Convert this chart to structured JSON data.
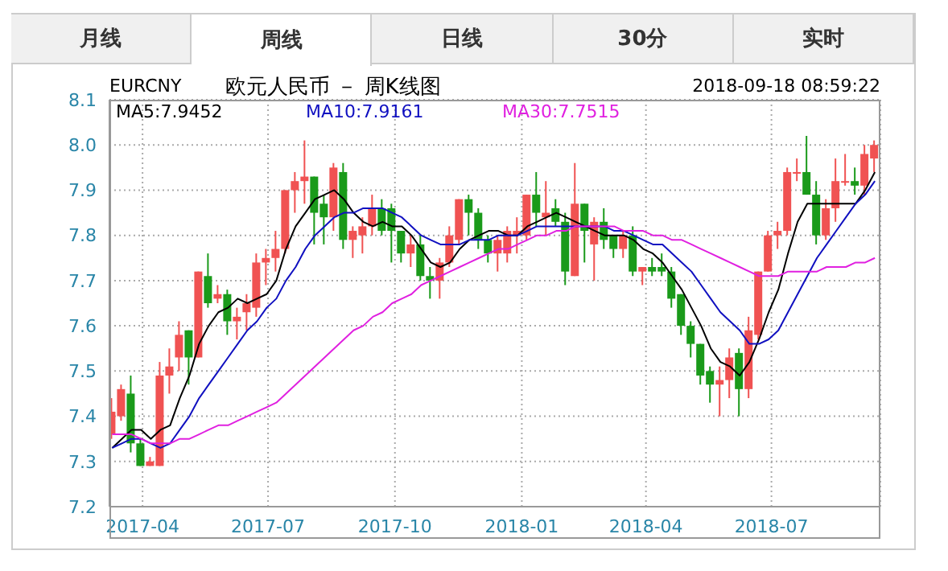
{
  "chart_data": {
    "type": "candlestick",
    "title": "欧元人民币 － 周K线图",
    "annotations": [
      "月线",
      "周线",
      "日线",
      "30分",
      "实时",
      "EURCNY",
      "2018-09-18 08:59:22"
    ],
    "x": [
      "2017-03-10",
      "2017-03-17",
      "2017-03-24",
      "2017-03-31",
      "2017-04-07",
      "2017-04-14",
      "2017-04-21",
      "2017-04-28",
      "2017-05-05",
      "2017-05-12",
      "2017-05-19",
      "2017-05-26",
      "2017-06-02",
      "2017-06-09",
      "2017-06-16",
      "2017-06-23",
      "2017-06-30",
      "2017-07-07",
      "2017-07-14",
      "2017-07-21",
      "2017-07-28",
      "2017-08-04",
      "2017-08-11",
      "2017-08-18",
      "2017-08-25",
      "2017-09-01",
      "2017-09-08",
      "2017-09-15",
      "2017-09-22",
      "2017-09-29",
      "2017-10-06",
      "2017-10-13",
      "2017-10-20",
      "2017-10-27",
      "2017-11-03",
      "2017-11-10",
      "2017-11-17",
      "2017-11-24",
      "2017-12-01",
      "2017-12-08",
      "2017-12-15",
      "2017-12-22",
      "2017-12-29",
      "2018-01-05",
      "2018-01-12",
      "2018-01-19",
      "2018-01-26",
      "2018-02-02",
      "2018-02-09",
      "2018-02-16",
      "2018-02-23",
      "2018-03-02",
      "2018-03-09",
      "2018-03-16",
      "2018-03-23",
      "2018-03-30",
      "2018-04-06",
      "2018-04-13",
      "2018-04-20",
      "2018-04-27",
      "2018-05-04",
      "2018-05-11",
      "2018-05-18",
      "2018-05-25",
      "2018-06-01",
      "2018-06-08",
      "2018-06-15",
      "2018-06-22",
      "2018-06-29",
      "2018-07-06",
      "2018-07-13",
      "2018-07-20",
      "2018-07-27",
      "2018-08-03",
      "2018-08-10",
      "2018-08-17",
      "2018-08-24",
      "2018-08-31",
      "2018-09-07",
      "2018-09-14"
    ],
    "ohlc": [
      [
        7.36,
        7.44,
        7.35,
        7.41
      ],
      [
        7.4,
        7.47,
        7.39,
        7.46
      ],
      [
        7.45,
        7.49,
        7.32,
        7.34
      ],
      [
        7.34,
        7.35,
        7.29,
        7.29
      ],
      [
        7.29,
        7.31,
        7.29,
        7.3
      ],
      [
        7.29,
        7.52,
        7.29,
        7.49
      ],
      [
        7.49,
        7.55,
        7.45,
        7.51
      ],
      [
        7.53,
        7.61,
        7.5,
        7.58
      ],
      [
        7.59,
        7.59,
        7.47,
        7.53
      ],
      [
        7.53,
        7.72,
        7.53,
        7.72
      ],
      [
        7.71,
        7.76,
        7.64,
        7.65
      ],
      [
        7.66,
        7.69,
        7.65,
        7.67
      ],
      [
        7.67,
        7.68,
        7.58,
        7.61
      ],
      [
        7.61,
        7.64,
        7.57,
        7.62
      ],
      [
        7.63,
        7.67,
        7.59,
        7.65
      ],
      [
        7.64,
        7.76,
        7.62,
        7.74
      ],
      [
        7.74,
        7.77,
        7.69,
        7.75
      ],
      [
        7.75,
        7.81,
        7.72,
        7.77
      ],
      [
        7.77,
        7.9,
        7.76,
        7.9
      ],
      [
        7.9,
        7.94,
        7.85,
        7.92
      ],
      [
        7.92,
        8.01,
        7.87,
        7.93
      ],
      [
        7.93,
        7.93,
        7.78,
        7.85
      ],
      [
        7.87,
        7.89,
        7.78,
        7.84
      ],
      [
        7.84,
        7.96,
        7.81,
        7.95
      ],
      [
        7.94,
        7.96,
        7.77,
        7.79
      ],
      [
        7.79,
        7.82,
        7.75,
        7.81
      ],
      [
        7.8,
        7.84,
        7.76,
        7.82
      ],
      [
        7.82,
        7.89,
        7.8,
        7.86
      ],
      [
        7.86,
        7.88,
        7.8,
        7.81
      ],
      [
        7.86,
        7.87,
        7.74,
        7.81
      ],
      [
        7.81,
        7.81,
        7.74,
        7.76
      ],
      [
        7.76,
        7.8,
        7.73,
        7.78
      ],
      [
        7.78,
        7.8,
        7.7,
        7.71
      ],
      [
        7.71,
        7.73,
        7.66,
        7.7
      ],
      [
        7.7,
        7.75,
        7.66,
        7.74
      ],
      [
        7.74,
        7.82,
        7.73,
        7.8
      ],
      [
        7.79,
        7.88,
        7.78,
        7.88
      ],
      [
        7.88,
        7.89,
        7.8,
        7.85
      ],
      [
        7.85,
        7.86,
        7.77,
        7.79
      ],
      [
        7.79,
        7.8,
        7.74,
        7.76
      ],
      [
        7.76,
        7.8,
        7.72,
        7.79
      ],
      [
        7.76,
        7.82,
        7.74,
        7.81
      ],
      [
        7.8,
        7.84,
        7.76,
        7.81
      ],
      [
        7.8,
        7.89,
        7.79,
        7.89
      ],
      [
        7.89,
        7.94,
        7.82,
        7.85
      ],
      [
        7.84,
        7.92,
        7.8,
        7.85
      ],
      [
        7.86,
        7.88,
        7.82,
        7.83
      ],
      [
        7.83,
        7.85,
        7.69,
        7.72
      ],
      [
        7.71,
        7.96,
        7.71,
        7.87
      ],
      [
        7.87,
        7.87,
        7.74,
        7.81
      ],
      [
        7.78,
        7.84,
        7.7,
        7.83
      ],
      [
        7.83,
        7.86,
        7.77,
        7.79
      ],
      [
        7.8,
        7.8,
        7.75,
        7.77
      ],
      [
        7.77,
        7.81,
        7.75,
        7.8
      ],
      [
        7.8,
        7.82,
        7.71,
        7.72
      ],
      [
        7.72,
        7.73,
        7.69,
        7.73
      ],
      [
        7.73,
        7.75,
        7.71,
        7.72
      ],
      [
        7.73,
        7.76,
        7.71,
        7.72
      ],
      [
        7.72,
        7.73,
        7.64,
        7.66
      ],
      [
        7.67,
        7.67,
        7.58,
        7.6
      ],
      [
        7.6,
        7.61,
        7.53,
        7.56
      ],
      [
        7.56,
        7.56,
        7.47,
        7.49
      ],
      [
        7.5,
        7.51,
        7.43,
        7.47
      ],
      [
        7.47,
        7.51,
        7.4,
        7.48
      ],
      [
        7.48,
        7.55,
        7.44,
        7.53
      ],
      [
        7.54,
        7.55,
        7.4,
        7.46
      ],
      [
        7.46,
        7.62,
        7.44,
        7.59
      ],
      [
        7.58,
        7.72,
        7.57,
        7.72
      ],
      [
        7.72,
        7.81,
        7.72,
        7.8
      ],
      [
        7.8,
        7.83,
        7.77,
        7.81
      ],
      [
        7.81,
        7.95,
        7.8,
        7.94
      ],
      [
        7.94,
        7.97,
        7.92,
        7.94
      ],
      [
        7.94,
        8.02,
        7.89,
        7.89
      ],
      [
        7.89,
        7.92,
        7.78,
        7.8
      ],
      [
        7.8,
        7.88,
        7.79,
        7.86
      ],
      [
        7.86,
        7.97,
        7.83,
        7.92
      ],
      [
        7.92,
        7.98,
        7.91,
        7.92
      ],
      [
        7.92,
        7.95,
        7.89,
        7.91
      ],
      [
        7.91,
        8.0,
        7.89,
        7.98
      ],
      [
        7.97,
        8.01,
        7.94,
        8.0
      ]
    ],
    "colors": [
      "#f05252",
      "#f05252",
      "#1a9a1a",
      "#1a9a1a",
      "#f05252",
      "#f05252",
      "#f05252",
      "#f05252",
      "#1a9a1a",
      "#f05252",
      "#1a9a1a",
      "#f05252",
      "#1a9a1a",
      "#f05252",
      "#f05252",
      "#f05252",
      "#f05252",
      "#f05252",
      "#f05252",
      "#f05252",
      "#f05252",
      "#1a9a1a",
      "#1a9a1a",
      "#f05252",
      "#1a9a1a",
      "#f05252",
      "#f05252",
      "#f05252",
      "#1a9a1a",
      "#1a9a1a",
      "#1a9a1a",
      "#f05252",
      "#1a9a1a",
      "#1a9a1a",
      "#f05252",
      "#f05252",
      "#f05252",
      "#1a9a1a",
      "#1a9a1a",
      "#1a9a1a",
      "#f05252",
      "#f05252",
      "#f05252",
      "#f05252",
      "#1a9a1a",
      "#f05252",
      "#1a9a1a",
      "#1a9a1a",
      "#f05252",
      "#1a9a1a",
      "#f05252",
      "#1a9a1a",
      "#1a9a1a",
      "#f05252",
      "#1a9a1a",
      "#f05252",
      "#1a9a1a",
      "#1a9a1a",
      "#1a9a1a",
      "#1a9a1a",
      "#1a9a1a",
      "#1a9a1a",
      "#1a9a1a",
      "#f05252",
      "#f05252",
      "#1a9a1a",
      "#f05252",
      "#f05252",
      "#f05252",
      "#f05252",
      "#f05252",
      "#f05252",
      "#1a9a1a",
      "#1a9a1a",
      "#f05252",
      "#f05252",
      "#f05252",
      "#1a9a1a",
      "#f05252",
      "#f05252"
    ],
    "series": [
      {
        "type": "line",
        "name": "MA5:7.9452",
        "color": "#000000",
        "values": [
          7.33,
          7.35,
          7.37,
          7.37,
          7.35,
          7.37,
          7.38,
          7.44,
          7.49,
          7.56,
          7.6,
          7.63,
          7.64,
          7.66,
          7.65,
          7.66,
          7.67,
          7.7,
          7.77,
          7.82,
          7.85,
          7.88,
          7.89,
          7.9,
          7.88,
          7.85,
          7.83,
          7.82,
          7.83,
          7.82,
          7.82,
          7.8,
          7.77,
          7.74,
          7.73,
          7.74,
          7.77,
          7.79,
          7.8,
          7.81,
          7.81,
          7.8,
          7.8,
          7.82,
          7.83,
          7.84,
          7.85,
          7.84,
          7.83,
          7.82,
          7.81,
          7.8,
          7.8,
          7.8,
          7.79,
          7.77,
          7.76,
          7.74,
          7.71,
          7.68,
          7.64,
          7.6,
          7.55,
          7.52,
          7.51,
          7.49,
          7.52,
          7.57,
          7.63,
          7.68,
          7.76,
          7.83,
          7.87,
          7.87,
          7.87,
          7.87,
          7.87,
          7.87,
          7.9,
          7.94
        ]
      },
      {
        "type": "line",
        "name": "MA10:7.9161",
        "color": "#1010c0",
        "values": [
          7.33,
          7.34,
          7.35,
          7.35,
          7.34,
          7.33,
          7.34,
          7.37,
          7.4,
          7.44,
          7.47,
          7.5,
          7.53,
          7.56,
          7.59,
          7.61,
          7.64,
          7.66,
          7.7,
          7.73,
          7.77,
          7.8,
          7.82,
          7.84,
          7.85,
          7.85,
          7.86,
          7.86,
          7.86,
          7.85,
          7.84,
          7.82,
          7.8,
          7.79,
          7.78,
          7.78,
          7.78,
          7.79,
          7.79,
          7.79,
          7.8,
          7.8,
          7.8,
          7.81,
          7.82,
          7.82,
          7.82,
          7.82,
          7.82,
          7.82,
          7.82,
          7.82,
          7.81,
          7.81,
          7.8,
          7.79,
          7.78,
          7.78,
          7.76,
          7.74,
          7.72,
          7.69,
          7.66,
          7.63,
          7.61,
          7.59,
          7.56,
          7.56,
          7.57,
          7.59,
          7.63,
          7.67,
          7.71,
          7.75,
          7.78,
          7.81,
          7.84,
          7.87,
          7.89,
          7.92
        ]
      },
      {
        "type": "line",
        "name": "MA30:7.7515",
        "color": "#e020e0",
        "values": [
          7.36,
          7.36,
          7.36,
          7.35,
          7.34,
          7.34,
          7.34,
          7.35,
          7.35,
          7.36,
          7.37,
          7.38,
          7.38,
          7.39,
          7.4,
          7.41,
          7.42,
          7.43,
          7.45,
          7.47,
          7.49,
          7.51,
          7.53,
          7.55,
          7.57,
          7.59,
          7.6,
          7.62,
          7.63,
          7.65,
          7.66,
          7.67,
          7.69,
          7.7,
          7.71,
          7.72,
          7.73,
          7.74,
          7.75,
          7.76,
          7.77,
          7.77,
          7.78,
          7.79,
          7.8,
          7.8,
          7.81,
          7.81,
          7.82,
          7.82,
          7.82,
          7.82,
          7.82,
          7.81,
          7.81,
          7.81,
          7.8,
          7.8,
          7.79,
          7.79,
          7.78,
          7.77,
          7.76,
          7.75,
          7.74,
          7.73,
          7.72,
          7.71,
          7.71,
          7.71,
          7.72,
          7.72,
          7.72,
          7.72,
          7.73,
          7.73,
          7.73,
          7.74,
          7.74,
          7.75
        ]
      }
    ],
    "xlim": [
      "2017-03-08",
      "2018-09-18"
    ],
    "xticks": [
      "2017-04",
      "2017-07",
      "2017-10",
      "2018-01",
      "2018-04",
      "2018-07"
    ],
    "ylim": [
      7.2,
      8.1
    ],
    "yticks": [
      7.2,
      7.3,
      7.4,
      7.5,
      7.6,
      7.7,
      7.8,
      7.9,
      {
        "value": 8,
        "label": "8.0"
      },
      8.1
    ],
    "grid": true,
    "legend": "top left"
  }
}
